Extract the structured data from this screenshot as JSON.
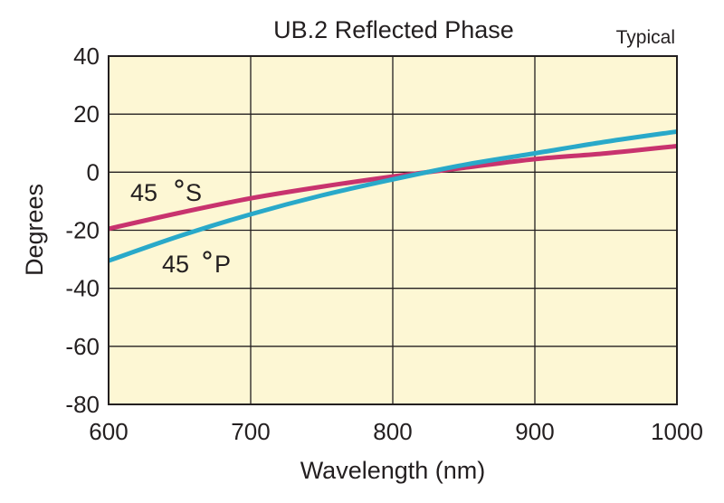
{
  "chart_data": {
    "type": "line",
    "title": "UB.2 Reflected Phase",
    "note": "Typical",
    "xlabel": "Wavelength (nm)",
    "ylabel": "Degrees",
    "xlim": [
      600,
      1000
    ],
    "ylim": [
      -80,
      40
    ],
    "xticks": [
      600,
      700,
      800,
      900,
      1000
    ],
    "yticks": [
      40,
      20,
      0,
      -20,
      -40,
      -60,
      -80
    ],
    "grid": true,
    "background_color": "#fdf7d4",
    "series": [
      {
        "name": "45°S",
        "label_parts": [
          "45",
          "S"
        ],
        "color": "#c8336e",
        "x": [
          600,
          650,
          700,
          750,
          800,
          850,
          900,
          950,
          1000
        ],
        "y": [
          -19.5,
          -14,
          -9,
          -5,
          -1.5,
          1.5,
          4.5,
          6.5,
          9
        ]
      },
      {
        "name": "45°P",
        "label_parts": [
          "45",
          "P"
        ],
        "color": "#29a9c9",
        "x": [
          600,
          650,
          700,
          750,
          800,
          850,
          900,
          950,
          1000
        ],
        "y": [
          -30.5,
          -22,
          -14.5,
          -8,
          -2.5,
          2.5,
          6.5,
          10.5,
          14
        ]
      }
    ]
  }
}
